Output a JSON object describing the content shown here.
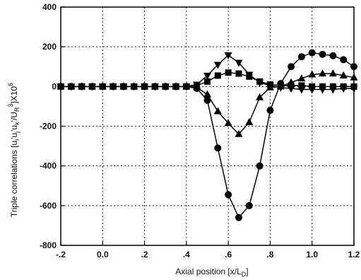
{
  "chart_data": {
    "type": "line",
    "title": "",
    "xlabel": "Axial position [x/L",
    "xlabel_sub": "D",
    "xlabel_end": "]",
    "ylabel_parts": {
      "a": "Triple correlations [u",
      "a_sub": "i",
      "b": "'u",
      "b_sub": "j",
      "c": "'u",
      "c_sub": "k",
      "d": "'/U",
      "d_sub": "R",
      "d_sup": "3",
      "e": "]X10",
      "e_sup": "6"
    },
    "xlim": [
      -0.2,
      1.2
    ],
    "ylim": [
      -800,
      400
    ],
    "x_ticks": [
      -0.2,
      0.0,
      0.2,
      0.4,
      0.6,
      0.8,
      1.0,
      1.2
    ],
    "x_tick_labels": [
      "-.2",
      "0.0",
      ".2",
      ".4",
      ".6",
      ".8",
      "1.0",
      "1.2"
    ],
    "y_ticks": [
      -800,
      -600,
      -400,
      -200,
      0,
      200,
      400
    ],
    "y_tick_labels": [
      "-800",
      "-600",
      "-400",
      "-200",
      "0",
      "200",
      "400"
    ],
    "grid": true,
    "series": [
      {
        "marker": "circle",
        "x": [
          -0.2,
          -0.15,
          -0.1,
          -0.05,
          0.0,
          0.05,
          0.1,
          0.15,
          0.2,
          0.25,
          0.3,
          0.35,
          0.4,
          0.45,
          0.5,
          0.55,
          0.6,
          0.65,
          0.7,
          0.75,
          0.8,
          0.85,
          0.9,
          0.95,
          1.0,
          1.05,
          1.1,
          1.15,
          1.2
        ],
        "y": [
          0,
          0,
          0,
          0,
          0,
          0,
          0,
          0,
          0,
          0,
          0,
          0,
          0,
          -10,
          -70,
          -310,
          -545,
          -660,
          -600,
          -400,
          -120,
          15,
          100,
          150,
          170,
          162,
          155,
          135,
          100
        ]
      },
      {
        "marker": "triangle-up",
        "x": [
          -0.2,
          -0.15,
          -0.1,
          -0.05,
          0.0,
          0.05,
          0.1,
          0.15,
          0.2,
          0.25,
          0.3,
          0.35,
          0.4,
          0.45,
          0.5,
          0.55,
          0.6,
          0.65,
          0.7,
          0.75,
          0.8,
          0.85,
          0.9,
          0.95,
          1.0,
          1.05,
          1.1,
          1.15,
          1.2
        ],
        "y": [
          0,
          0,
          0,
          0,
          0,
          0,
          0,
          0,
          0,
          0,
          0,
          0,
          0,
          -5,
          -40,
          -125,
          -185,
          -240,
          -180,
          -55,
          -5,
          0,
          20,
          40,
          60,
          65,
          65,
          55,
          45
        ]
      },
      {
        "marker": "square",
        "x": [
          -0.2,
          -0.15,
          -0.1,
          -0.05,
          0.0,
          0.05,
          0.1,
          0.15,
          0.2,
          0.25,
          0.3,
          0.35,
          0.4,
          0.45,
          0.5,
          0.55,
          0.6,
          0.65,
          0.7,
          0.75,
          0.8,
          0.85,
          0.9,
          0.95,
          1.0,
          1.05,
          1.1,
          1.15,
          1.2
        ],
        "y": [
          0,
          0,
          0,
          0,
          0,
          0,
          0,
          0,
          0,
          0,
          0,
          0,
          0,
          5,
          25,
          55,
          70,
          65,
          50,
          25,
          10,
          5,
          5,
          5,
          0,
          0,
          0,
          0,
          0
        ]
      },
      {
        "marker": "triangle-down",
        "x": [
          -0.2,
          -0.15,
          -0.1,
          -0.05,
          0.0,
          0.05,
          0.1,
          0.15,
          0.2,
          0.25,
          0.3,
          0.35,
          0.4,
          0.45,
          0.5,
          0.55,
          0.6,
          0.65,
          0.7,
          0.75,
          0.8,
          0.85,
          0.9,
          0.95,
          1.0,
          1.05,
          1.1,
          1.15,
          1.2
        ],
        "y": [
          0,
          0,
          0,
          0,
          0,
          0,
          0,
          0,
          0,
          0,
          0,
          0,
          0,
          10,
          55,
          110,
          158,
          120,
          60,
          20,
          5,
          -5,
          -10,
          -15,
          -15,
          -15,
          -15,
          -10,
          -10
        ]
      }
    ]
  }
}
